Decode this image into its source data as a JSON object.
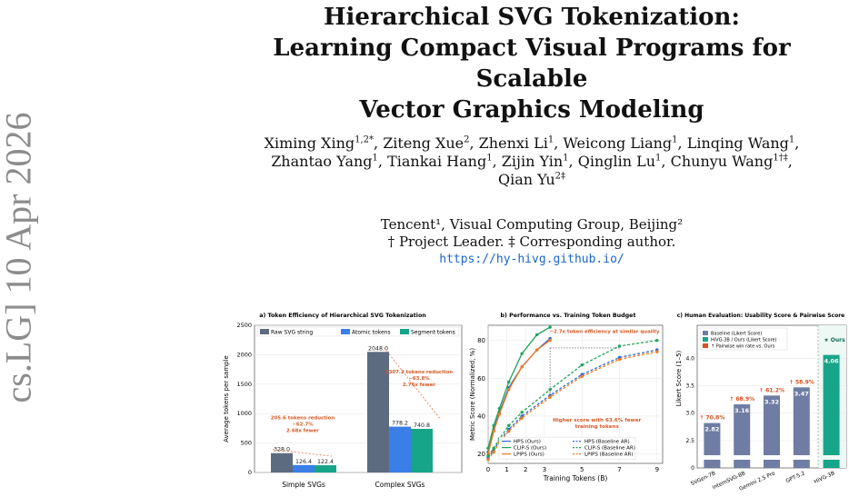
{
  "arxiv_stamp": "cs.LG] 10 Apr 2026",
  "title": {
    "line1": "Hierarchical SVG Tokenization:",
    "line2": "Learning Compact Visual Programs for Scalable",
    "line3": "Vector Graphics Modeling"
  },
  "authors": [
    {
      "name": "Ximing Xing",
      "sup": "1,2*"
    },
    {
      "name": "Ziteng Xue",
      "sup": "2"
    },
    {
      "name": "Zhenxi Li",
      "sup": "1"
    },
    {
      "name": "Weicong Liang",
      "sup": "1"
    },
    {
      "name": "Linqing Wang",
      "sup": "1"
    },
    {
      "name": "Zhantao Yang",
      "sup": "1"
    },
    {
      "name": "Tiankai Hang",
      "sup": "1"
    },
    {
      "name": "Zijin Yin",
      "sup": "1"
    },
    {
      "name": "Qinglin Lu",
      "sup": "1"
    },
    {
      "name": "Chunyu Wang",
      "sup": "1†‡"
    },
    {
      "name": "Qian Yu",
      "sup": "2‡"
    }
  ],
  "affiliations": {
    "line1": "Tencent¹, Visual Computing Group, Beijing²",
    "line2": "† Project Leader. ‡ Corresponding author.",
    "url": "https://hy-hivg.github.io/"
  },
  "figure": {
    "chart_a": {
      "type": "bar",
      "title": "a) Token Efficiency of Hierarchical SVG Tokenization",
      "ylabel": "Average tokens per sample",
      "ylim": [
        0,
        2500
      ],
      "yticks": [
        "0",
        "500",
        "1000",
        "1500",
        "2000",
        "2500"
      ],
      "categories": [
        "Simple SVGs",
        "Complex SVGs"
      ],
      "series": [
        {
          "name": "Raw SVG string",
          "color": "#5d6b80",
          "values": [
            328.0,
            2048.0
          ],
          "labels": [
            "328.0",
            "2048.0"
          ]
        },
        {
          "name": "Atomic tokens",
          "color": "#3a7fe8",
          "values": [
            126.4,
            778.2
          ],
          "labels": [
            "126.4",
            "778.2"
          ]
        },
        {
          "name": "Segment tokens",
          "color": "#17a589",
          "values": [
            122.4,
            740.8
          ],
          "labels": [
            "122.4",
            "740.8"
          ]
        }
      ],
      "annotations": [
        {
          "lines": [
            "205.6 tokens reduction",
            "−62.7%",
            "2.68x fewer"
          ]
        },
        {
          "lines": [
            "1307.2 tokens reduction",
            "−63.8%",
            "2.76x fewer"
          ]
        }
      ]
    },
    "chart_b": {
      "type": "line",
      "title": "b) Performance vs. Training Token Budget",
      "xlabel": "Training Tokens (B)",
      "ylabel": "Metric Score (Normalized, %)",
      "xlim": [
        0,
        9.3
      ],
      "ylim": [
        15,
        88
      ],
      "xticks": [
        "0",
        "1",
        "2",
        "3",
        "5",
        "7",
        "9"
      ],
      "yticks": [
        "20",
        "40",
        "60",
        "80"
      ],
      "series": [
        {
          "name": "HPS (Ours)",
          "color": "#2f6bd3",
          "dash": false,
          "x": [
            0,
            0.3,
            0.6,
            1.1,
            1.8,
            2.6,
            3.3
          ],
          "y": [
            21,
            33,
            42,
            55,
            66,
            75,
            81
          ]
        },
        {
          "name": "CLIP-S (Ours)",
          "color": "#1fa35b",
          "dash": false,
          "x": [
            0,
            0.3,
            0.6,
            1.1,
            1.8,
            2.6,
            3.3
          ],
          "y": [
            23,
            35,
            44,
            58,
            73,
            83,
            87
          ]
        },
        {
          "name": "LPIPS (Ours)",
          "color": "#ef7a22",
          "dash": false,
          "x": [
            0,
            0.3,
            0.6,
            1.1,
            1.8,
            2.6,
            3.3
          ],
          "y": [
            20,
            32,
            41,
            54,
            66,
            75,
            80
          ]
        },
        {
          "name": "HPS (Baseline AR)",
          "color": "#2f6bd3",
          "dash": true,
          "x": [
            0,
            0.3,
            0.6,
            1.1,
            1.8,
            3.3,
            5,
            7,
            9
          ],
          "y": [
            18,
            22,
            27,
            33,
            40,
            51,
            62,
            71,
            75
          ]
        },
        {
          "name": "CLIP-S (Baseline AR)",
          "color": "#1fa35b",
          "dash": true,
          "x": [
            0,
            0.3,
            0.6,
            1.1,
            1.8,
            3.3,
            5,
            7,
            9
          ],
          "y": [
            19,
            23,
            28,
            35,
            42,
            54,
            67,
            77,
            80
          ]
        },
        {
          "name": "LPIPS (Baseline AR)",
          "color": "#ef7a22",
          "dash": true,
          "x": [
            0,
            0.3,
            0.6,
            1.1,
            1.8,
            3.3,
            5,
            7,
            9
          ],
          "y": [
            17,
            21,
            26,
            32,
            39,
            50,
            61,
            70,
            74
          ]
        }
      ],
      "annotations": [
        "~2.7x token efficiency at similar quality",
        "Higher score with 63.6% fewer",
        "training tokens"
      ]
    },
    "chart_c": {
      "type": "bar",
      "title": "c) Human Evaluation: Usability Score & Pairwise Score",
      "ylabel": "Likert Score (1–5)",
      "ylim": [
        2.3,
        4.6
      ],
      "yticks": [
        "2.5",
        "3.0",
        "3.5",
        "4.0"
      ],
      "bottom_tick": "0",
      "categories": [
        "SVGen-7B",
        "InternSVG-8B",
        "Gemini 2.5 Pro",
        "GPT-5.2",
        "HiVG-3B"
      ],
      "values": [
        2.82,
        3.16,
        3.32,
        3.47,
        4.06
      ],
      "value_labels": [
        "2.82",
        "3.16",
        "3.32",
        "3.47",
        "4.06"
      ],
      "win_rates": [
        "↑ 70.8%",
        "↑ 68.9%",
        "↑ 61.2%",
        "↑ 58.9%",
        ""
      ],
      "legend": [
        "Baseline (Likert Score)",
        "HiVG-3B / Ours (Likert Score)",
        "↑ Pairwise win rate vs. Ours"
      ],
      "ours_label": "★ Ours",
      "colors": {
        "baseline": "#6f7ca3",
        "ours": "#17a589",
        "win": "#d8501f"
      }
    }
  }
}
